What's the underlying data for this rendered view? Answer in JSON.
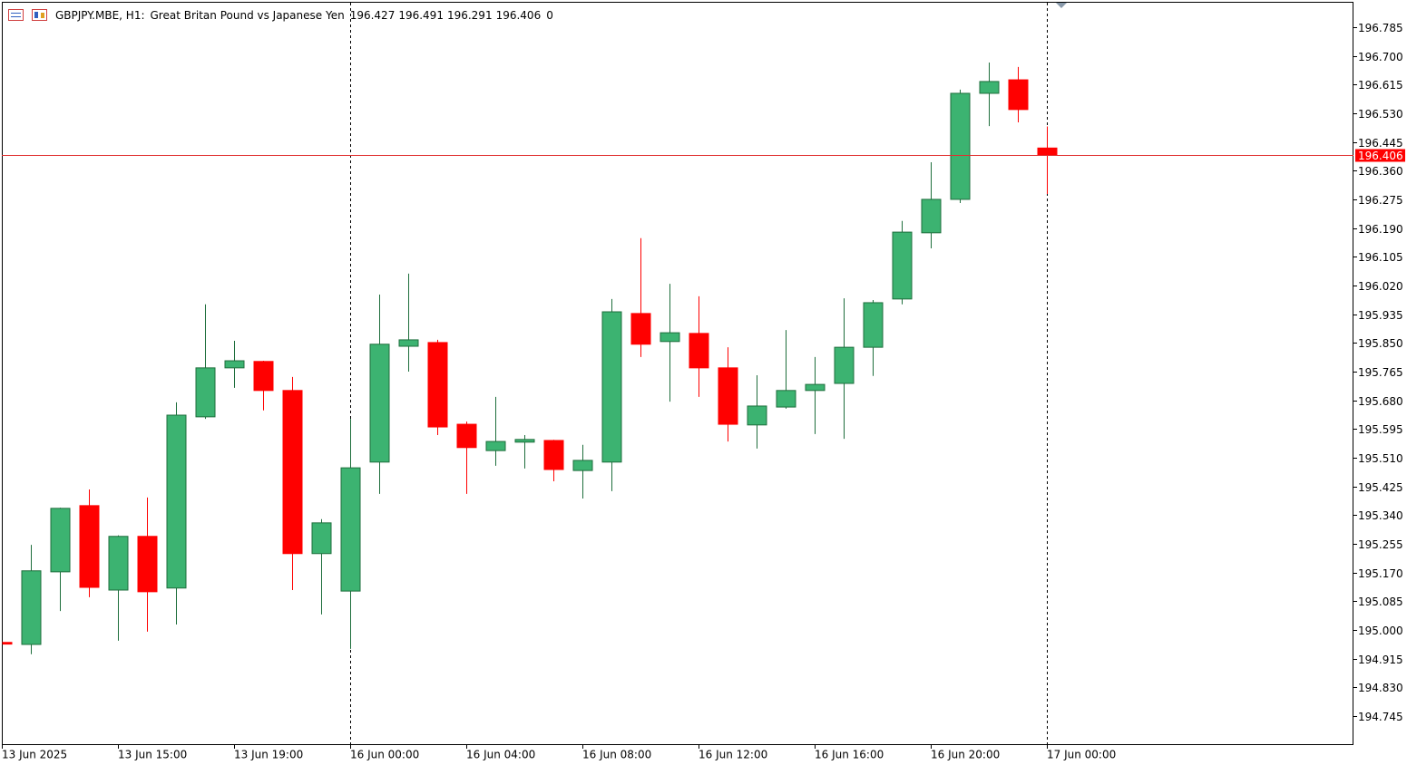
{
  "chart_data": {
    "type": "candlestick",
    "symbol": "GBPJPY.MBE, H1:",
    "description": "Great Britan Pound vs Japanese Yen",
    "spread": 0,
    "categories": [
      "13 Jun 2025",
      null,
      null,
      null,
      "13 Jun 15:00",
      null,
      null,
      null,
      "13 Jun 19:00",
      null,
      null,
      null,
      "16 Jun 00:00",
      null,
      null,
      null,
      "16 Jun 04:00",
      null,
      null,
      null,
      "16 Jun 08:00",
      null,
      null,
      null,
      "16 Jun 12:00",
      null,
      null,
      null,
      "16 Jun 16:00",
      null,
      null,
      null,
      "16 Jun 20:00",
      null,
      null,
      null,
      "17 Jun 00:00"
    ],
    "open": [
      194.963,
      194.957,
      195.172,
      195.368,
      195.118,
      195.277,
      195.124,
      195.631,
      195.776,
      195.795,
      195.709,
      195.226,
      195.115,
      195.497,
      195.84,
      195.851,
      195.609,
      195.531,
      195.556,
      195.561,
      195.472,
      195.497,
      195.937,
      195.854,
      195.878,
      195.776,
      195.607,
      195.66,
      195.709,
      195.73,
      195.837,
      195.98,
      196.176,
      196.275,
      196.589,
      196.629,
      196.427
    ],
    "high": [
      194.966,
      195.252,
      195.362,
      195.416,
      195.28,
      195.392,
      195.674,
      195.964,
      195.856,
      195.797,
      195.749,
      195.328,
      195.625,
      195.993,
      196.055,
      195.859,
      195.617,
      195.69,
      195.577,
      195.563,
      195.548,
      195.98,
      196.16,
      196.025,
      195.988,
      195.837,
      195.754,
      195.888,
      195.808,
      195.982,
      195.977,
      196.211,
      196.385,
      196.6,
      196.68,
      196.667,
      196.491
    ],
    "low": [
      194.957,
      194.928,
      195.056,
      195.097,
      194.968,
      194.995,
      195.016,
      195.625,
      195.717,
      195.65,
      195.118,
      195.046,
      194.944,
      195.403,
      195.765,
      195.577,
      195.403,
      195.486,
      195.478,
      195.44,
      195.389,
      195.411,
      195.808,
      195.676,
      195.69,
      195.558,
      195.537,
      195.655,
      195.58,
      195.566,
      195.752,
      195.964,
      196.13,
      196.264,
      196.492,
      196.503,
      196.291
    ],
    "close": [
      194.958,
      195.175,
      195.36,
      195.126,
      195.277,
      195.113,
      195.636,
      195.776,
      195.797,
      195.709,
      195.226,
      195.317,
      195.48,
      195.846,
      195.859,
      195.601,
      195.54,
      195.558,
      195.564,
      195.475,
      195.502,
      195.942,
      195.846,
      195.88,
      195.776,
      195.609,
      195.663,
      195.709,
      195.727,
      195.837,
      195.969,
      196.178,
      196.275,
      196.589,
      196.624,
      196.541,
      196.406
    ],
    "up_color": "#3cb371",
    "down_color": "#ff0000",
    "price_line_color": "#e03030",
    "ylim": [
      194.659,
      196.86
    ],
    "yticks": [
      194.745,
      {
        "value": 194.83,
        "label": "194.830"
      },
      194.915,
      {
        "value": 195.0,
        "label": "195.000"
      },
      195.085,
      {
        "value": 195.17,
        "label": "195.170"
      },
      195.255,
      {
        "value": 195.34,
        "label": "195.340"
      },
      195.425,
      {
        "value": 195.51,
        "label": "195.510"
      },
      195.595,
      {
        "value": 195.68,
        "label": "195.680"
      },
      195.765,
      {
        "value": 195.85,
        "label": "195.850"
      },
      195.935,
      {
        "value": 196.02,
        "label": "196.020"
      },
      196.105,
      {
        "value": 196.19,
        "label": "196.190"
      },
      196.275,
      {
        "value": 196.36,
        "label": "196.360"
      },
      196.445,
      {
        "value": 196.53,
        "label": "196.530"
      },
      196.615,
      {
        "value": 196.7,
        "label": "196.700"
      },
      196.785
    ]
  }
}
